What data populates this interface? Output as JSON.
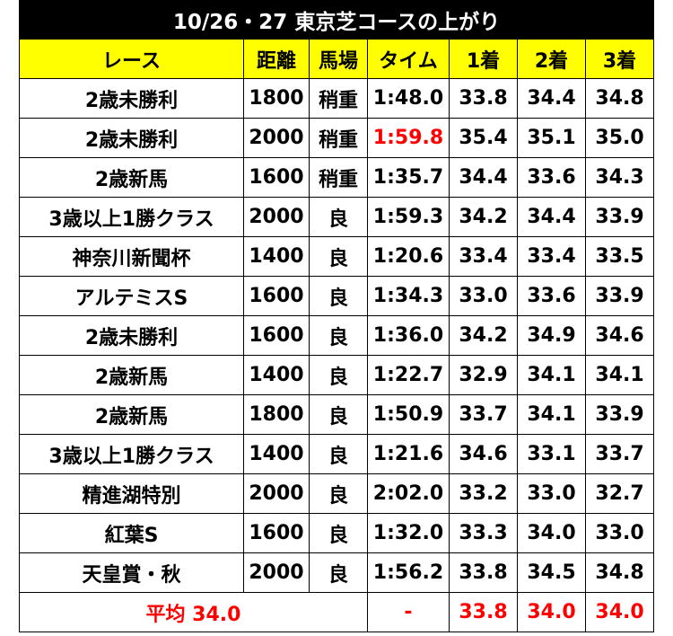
{
  "title": "10/26・27 東京芝コースの上がり",
  "headers": {
    "race": "レース",
    "distance": "距離",
    "track": "馬場",
    "time": "タイム",
    "first": "1着",
    "second": "2着",
    "third": "3着"
  },
  "rows": [
    {
      "race": "2歳未勝利",
      "distance": "1800",
      "track": "稍重",
      "time": "1:48.0",
      "first": "33.8",
      "second": "34.4",
      "third": "34.8",
      "time_highlight": false
    },
    {
      "race": "2歳未勝利",
      "distance": "2000",
      "track": "稍重",
      "time": "1:59.8",
      "first": "35.4",
      "second": "35.1",
      "third": "35.0",
      "time_highlight": true
    },
    {
      "race": "2歳新馬",
      "distance": "1600",
      "track": "稍重",
      "time": "1:35.7",
      "first": "34.4",
      "second": "33.6",
      "third": "34.3",
      "time_highlight": false
    },
    {
      "race": "3歳以上1勝クラス",
      "distance": "2000",
      "track": "良",
      "time": "1:59.3",
      "first": "34.2",
      "second": "34.4",
      "third": "33.9",
      "time_highlight": false
    },
    {
      "race": "神奈川新聞杯",
      "distance": "1400",
      "track": "良",
      "time": "1:20.6",
      "first": "33.4",
      "second": "33.4",
      "third": "33.5",
      "time_highlight": false
    },
    {
      "race": "アルテミスS",
      "distance": "1600",
      "track": "良",
      "time": "1:34.3",
      "first": "33.0",
      "second": "33.6",
      "third": "33.9",
      "time_highlight": false
    },
    {
      "race": "2歳未勝利",
      "distance": "1600",
      "track": "良",
      "time": "1:36.0",
      "first": "34.2",
      "second": "34.9",
      "third": "34.6",
      "time_highlight": false
    },
    {
      "race": "2歳新馬",
      "distance": "1400",
      "track": "良",
      "time": "1:22.7",
      "first": "32.9",
      "second": "34.1",
      "third": "34.1",
      "time_highlight": false
    },
    {
      "race": "2歳新馬",
      "distance": "1800",
      "track": "良",
      "time": "1:50.9",
      "first": "33.7",
      "second": "34.1",
      "third": "33.9",
      "time_highlight": false
    },
    {
      "race": "3歳以上1勝クラス",
      "distance": "1400",
      "track": "良",
      "time": "1:21.6",
      "first": "34.6",
      "second": "33.1",
      "third": "33.7",
      "time_highlight": false
    },
    {
      "race": "精進湖特別",
      "distance": "2000",
      "track": "良",
      "time": "2:02.0",
      "first": "33.2",
      "second": "33.0",
      "third": "32.7",
      "time_highlight": false
    },
    {
      "race": "紅葉S",
      "distance": "1600",
      "track": "良",
      "time": "1:32.0",
      "first": "33.3",
      "second": "34.0",
      "third": "33.0",
      "time_highlight": false
    },
    {
      "race": "天皇賞・秋",
      "distance": "2000",
      "track": "良",
      "time": "1:56.2",
      "first": "33.8",
      "second": "34.5",
      "third": "34.8",
      "time_highlight": false
    }
  ],
  "average": {
    "label": "平均 34.0",
    "time": "-",
    "first": "33.8",
    "second": "34.0",
    "third": "34.0"
  },
  "colors": {
    "title_bg": "#000000",
    "title_text": "#ffffff",
    "header_bg": "#ffff00",
    "highlight": "#ff0000"
  }
}
